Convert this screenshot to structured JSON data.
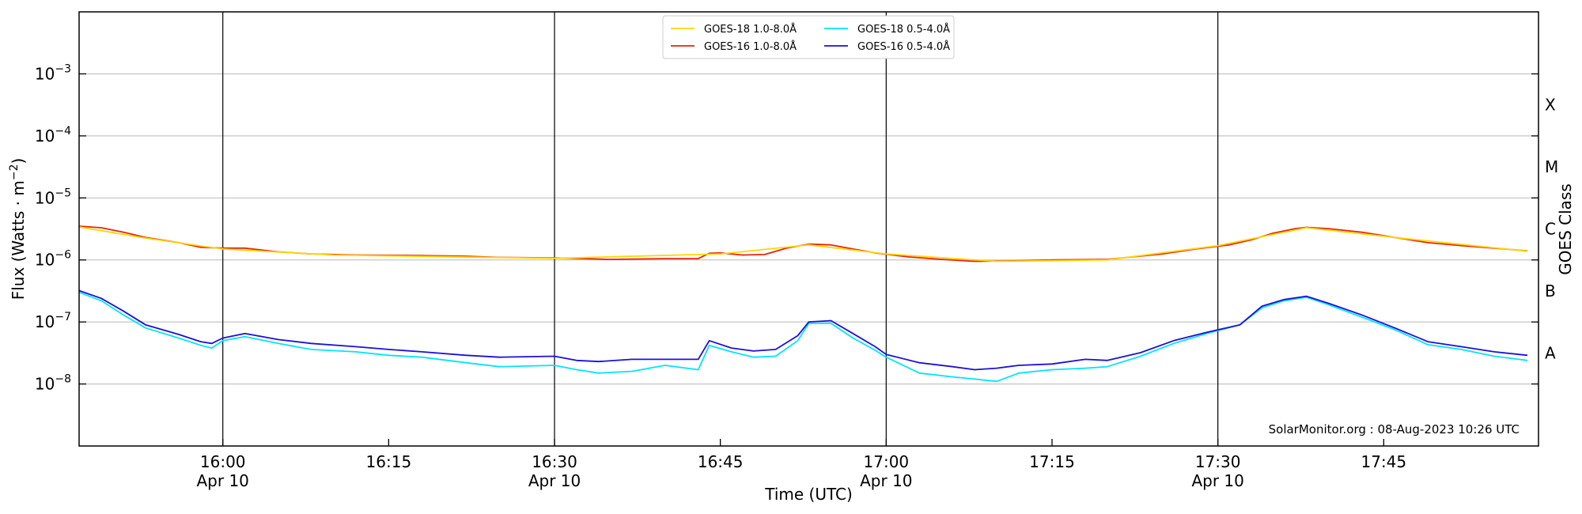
{
  "chart_data": {
    "type": "line",
    "xlabel": "Time (UTC)",
    "ylabel_main": "Flux (Watts · m",
    "ylabel_sup": "−2",
    "ylabel_close": ")",
    "right_label": "GOES Class",
    "credit": "SolarMonitor.org : 08-Aug-2023 10:26 UTC",
    "y_scale": "log",
    "ylim": [
      1e-09,
      0.01
    ],
    "xlim_minutes_utc": [
      "15:47",
      "17:59"
    ],
    "x_ticks": [
      {
        "time": "16:00",
        "line1": "16:00",
        "line2": "Apr 10",
        "vline": true
      },
      {
        "time": "16:15",
        "line1": "16:15",
        "line2": "",
        "vline": false
      },
      {
        "time": "16:30",
        "line1": "16:30",
        "line2": "Apr 10",
        "vline": true
      },
      {
        "time": "16:45",
        "line1": "16:45",
        "line2": "",
        "vline": false
      },
      {
        "time": "17:00",
        "line1": "17:00",
        "line2": "Apr 10",
        "vline": true
      },
      {
        "time": "17:15",
        "line1": "17:15",
        "line2": "",
        "vline": false
      },
      {
        "time": "17:30",
        "line1": "17:30",
        "line2": "Apr 10",
        "vline": true
      },
      {
        "time": "17:45",
        "line1": "17:45",
        "line2": "",
        "vline": false
      }
    ],
    "y_ticks": [
      {
        "value": 1e-08,
        "mantissa": "10",
        "exp": "−8"
      },
      {
        "value": 1e-07,
        "mantissa": "10",
        "exp": "−7"
      },
      {
        "value": 1e-06,
        "mantissa": "10",
        "exp": "−6"
      },
      {
        "value": 1e-05,
        "mantissa": "10",
        "exp": "−5"
      },
      {
        "value": 0.0001,
        "mantissa": "10",
        "exp": "−4"
      },
      {
        "value": 0.001,
        "mantissa": "10",
        "exp": "−3"
      }
    ],
    "goes_classes": [
      {
        "label": "A",
        "value": 3.16e-08
      },
      {
        "label": "B",
        "value": 3.16e-07
      },
      {
        "label": "C",
        "value": 3.16e-06
      },
      {
        "label": "M",
        "value": 3.16e-05
      },
      {
        "label": "X",
        "value": 0.000316
      }
    ],
    "legend": [
      {
        "name": "GOES-18 1.0-8.0Å",
        "color": "#ffd700"
      },
      {
        "name": "GOES-18 0.5-4.0Å",
        "color": "#00e5ff"
      },
      {
        "name": "GOES-16 1.0-8.0Å",
        "color": "#e8230a"
      },
      {
        "name": "GOES-16 0.5-4.0Å",
        "color": "#1c10d8"
      }
    ],
    "series": [
      {
        "name": "GOES-16 1.0-8.0Å",
        "color": "#e8230a",
        "points": [
          [
            "15:47",
            3.5e-06
          ],
          [
            "15:49",
            3.3e-06
          ],
          [
            "15:51",
            2.8e-06
          ],
          [
            "15:53",
            2.3e-06
          ],
          [
            "15:56",
            1.9e-06
          ],
          [
            "15:58",
            1.6e-06
          ],
          [
            "16:00",
            1.55e-06
          ],
          [
            "16:02",
            1.55e-06
          ],
          [
            "16:05",
            1.35e-06
          ],
          [
            "16:08",
            1.25e-06
          ],
          [
            "16:12",
            1.2e-06
          ],
          [
            "16:18",
            1.18e-06
          ],
          [
            "16:22",
            1.15e-06
          ],
          [
            "16:25",
            1.1e-06
          ],
          [
            "16:30",
            1.08e-06
          ],
          [
            "16:35",
            1.02e-06
          ],
          [
            "16:40",
            1.05e-06
          ],
          [
            "16:43",
            1.05e-06
          ],
          [
            "16:44",
            1.28e-06
          ],
          [
            "16:45",
            1.3e-06
          ],
          [
            "16:47",
            1.2e-06
          ],
          [
            "16:49",
            1.22e-06
          ],
          [
            "16:51",
            1.55e-06
          ],
          [
            "16:53",
            1.8e-06
          ],
          [
            "16:55",
            1.75e-06
          ],
          [
            "16:57",
            1.5e-06
          ],
          [
            "16:59",
            1.3e-06
          ],
          [
            "17:02",
            1.12e-06
          ],
          [
            "17:05",
            1.02e-06
          ],
          [
            "17:08",
            9.5e-07
          ],
          [
            "17:12",
            9.7e-07
          ],
          [
            "17:15",
            1e-06
          ],
          [
            "17:20",
            1.02e-06
          ],
          [
            "17:25",
            1.25e-06
          ],
          [
            "17:28",
            1.5e-06
          ],
          [
            "17:31",
            1.75e-06
          ],
          [
            "17:33",
            2.1e-06
          ],
          [
            "17:35",
            2.7e-06
          ],
          [
            "17:37",
            3.2e-06
          ],
          [
            "17:38",
            3.35e-06
          ],
          [
            "17:40",
            3.2e-06
          ],
          [
            "17:43",
            2.8e-06
          ],
          [
            "17:46",
            2.3e-06
          ],
          [
            "17:49",
            1.9e-06
          ],
          [
            "17:52",
            1.7e-06
          ],
          [
            "17:55",
            1.55e-06
          ],
          [
            "17:58",
            1.4e-06
          ]
        ]
      },
      {
        "name": "GOES-18 1.0-8.0Å",
        "color": "#ffd700",
        "points": [
          [
            "15:47",
            3.4e-06
          ],
          [
            "15:53",
            2.25e-06
          ],
          [
            "16:00",
            1.5e-06
          ],
          [
            "16:10",
            1.2e-06
          ],
          [
            "16:30",
            1.06e-06
          ],
          [
            "16:45",
            1.25e-06
          ],
          [
            "16:53",
            1.75e-06
          ],
          [
            "17:00",
            1.25e-06
          ],
          [
            "17:10",
            9.5e-07
          ],
          [
            "17:20",
            1e-06
          ],
          [
            "17:30",
            1.7e-06
          ],
          [
            "17:38",
            3.3e-06
          ],
          [
            "17:46",
            2.3e-06
          ],
          [
            "17:58",
            1.38e-06
          ]
        ]
      },
      {
        "name": "GOES-18 0.5-4.0Å",
        "color": "#00e5ff",
        "points": [
          [
            "15:47",
            3e-07
          ],
          [
            "15:49",
            2.2e-07
          ],
          [
            "15:51",
            1.3e-07
          ],
          [
            "15:53",
            8e-08
          ],
          [
            "15:56",
            5.5e-08
          ],
          [
            "15:58",
            4.2e-08
          ],
          [
            "15:59",
            3.8e-08
          ],
          [
            "16:00",
            5e-08
          ],
          [
            "16:02",
            5.8e-08
          ],
          [
            "16:05",
            4.5e-08
          ],
          [
            "16:08",
            3.6e-08
          ],
          [
            "16:12",
            3.3e-08
          ],
          [
            "16:15",
            2.9e-08
          ],
          [
            "16:18",
            2.7e-08
          ],
          [
            "16:22",
            2.2e-08
          ],
          [
            "16:25",
            1.9e-08
          ],
          [
            "16:30",
            2e-08
          ],
          [
            "16:32",
            1.7e-08
          ],
          [
            "16:34",
            1.5e-08
          ],
          [
            "16:37",
            1.6e-08
          ],
          [
            "16:40",
            2e-08
          ],
          [
            "16:43",
            1.7e-08
          ],
          [
            "16:44",
            4.2e-08
          ],
          [
            "16:46",
            3.3e-08
          ],
          [
            "16:48",
            2.7e-08
          ],
          [
            "16:50",
            2.8e-08
          ],
          [
            "16:52",
            5e-08
          ],
          [
            "16:53",
            9.5e-08
          ],
          [
            "16:55",
            9.5e-08
          ],
          [
            "16:57",
            5.5e-08
          ],
          [
            "16:59",
            3.5e-08
          ],
          [
            "17:00",
            2.7e-08
          ],
          [
            "17:03",
            1.5e-08
          ],
          [
            "17:06",
            1.3e-08
          ],
          [
            "17:08",
            1.2e-08
          ],
          [
            "17:10",
            1.1e-08
          ],
          [
            "17:12",
            1.5e-08
          ],
          [
            "17:15",
            1.7e-08
          ],
          [
            "17:18",
            1.8e-08
          ],
          [
            "17:20",
            1.9e-08
          ],
          [
            "17:23",
            2.8e-08
          ],
          [
            "17:26",
            4.5e-08
          ],
          [
            "17:29",
            6.5e-08
          ],
          [
            "17:32",
            9e-08
          ],
          [
            "17:34",
            1.7e-07
          ],
          [
            "17:36",
            2.2e-07
          ],
          [
            "17:38",
            2.5e-07
          ],
          [
            "17:40",
            1.9e-07
          ],
          [
            "17:43",
            1.2e-07
          ],
          [
            "17:46",
            7.5e-08
          ],
          [
            "17:49",
            4.3e-08
          ],
          [
            "17:52",
            3.6e-08
          ],
          [
            "17:55",
            2.8e-08
          ],
          [
            "17:58",
            2.4e-08
          ]
        ]
      },
      {
        "name": "GOES-16 0.5-4.0Å",
        "color": "#1c10d8",
        "points": [
          [
            "15:47",
            3.2e-07
          ],
          [
            "15:49",
            2.4e-07
          ],
          [
            "15:51",
            1.5e-07
          ],
          [
            "15:53",
            9e-08
          ],
          [
            "15:56",
            6.3e-08
          ],
          [
            "15:58",
            4.8e-08
          ],
          [
            "15:59",
            4.5e-08
          ],
          [
            "16:00",
            5.5e-08
          ],
          [
            "16:02",
            6.5e-08
          ],
          [
            "16:05",
            5.2e-08
          ],
          [
            "16:08",
            4.5e-08
          ],
          [
            "16:12",
            4e-08
          ],
          [
            "16:15",
            3.6e-08
          ],
          [
            "16:18",
            3.3e-08
          ],
          [
            "16:22",
            2.9e-08
          ],
          [
            "16:25",
            2.7e-08
          ],
          [
            "16:30",
            2.8e-08
          ],
          [
            "16:32",
            2.4e-08
          ],
          [
            "16:34",
            2.3e-08
          ],
          [
            "16:37",
            2.5e-08
          ],
          [
            "16:40",
            2.5e-08
          ],
          [
            "16:43",
            2.5e-08
          ],
          [
            "16:44",
            5e-08
          ],
          [
            "16:46",
            3.8e-08
          ],
          [
            "16:48",
            3.4e-08
          ],
          [
            "16:50",
            3.6e-08
          ],
          [
            "16:52",
            6e-08
          ],
          [
            "16:53",
            1e-07
          ],
          [
            "16:55",
            1.05e-07
          ],
          [
            "16:57",
            6.5e-08
          ],
          [
            "16:59",
            4e-08
          ],
          [
            "17:00",
            3e-08
          ],
          [
            "17:03",
            2.2e-08
          ],
          [
            "17:06",
            1.9e-08
          ],
          [
            "17:08",
            1.7e-08
          ],
          [
            "17:10",
            1.8e-08
          ],
          [
            "17:12",
            2e-08
          ],
          [
            "17:15",
            2.1e-08
          ],
          [
            "17:18",
            2.5e-08
          ],
          [
            "17:20",
            2.4e-08
          ],
          [
            "17:23",
            3.2e-08
          ],
          [
            "17:26",
            5e-08
          ],
          [
            "17:29",
            6.8e-08
          ],
          [
            "17:32",
            9e-08
          ],
          [
            "17:34",
            1.8e-07
          ],
          [
            "17:36",
            2.3e-07
          ],
          [
            "17:38",
            2.6e-07
          ],
          [
            "17:40",
            2e-07
          ],
          [
            "17:43",
            1.3e-07
          ],
          [
            "17:46",
            8e-08
          ],
          [
            "17:49",
            4.8e-08
          ],
          [
            "17:52",
            4e-08
          ],
          [
            "17:55",
            3.3e-08
          ],
          [
            "17:58",
            2.9e-08
          ]
        ]
      }
    ]
  }
}
